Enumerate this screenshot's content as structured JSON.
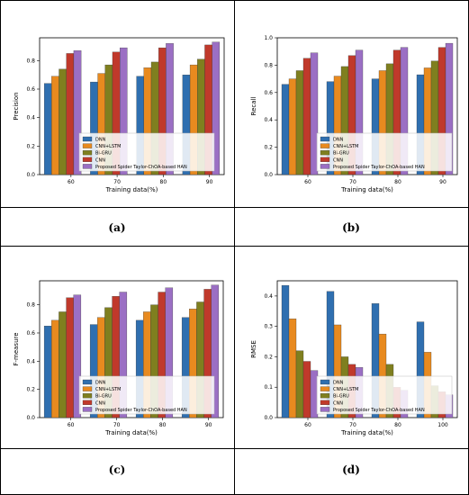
{
  "colors": {
    "DNN": "#2f6fb0",
    "CNN+LSTM": "#e88a1f",
    "Bi-GRU": "#7f7f1f",
    "CNN": "#c0392b",
    "HAN": "#9b6fc4"
  },
  "chart_data": [
    {
      "type": "bar",
      "panel_label": "(a)",
      "xlabel": "Training data(%)",
      "ylabel": "Precision",
      "categories": [
        "60",
        "70",
        "80",
        "90"
      ],
      "ylim": [
        0,
        0.96
      ],
      "yticks": [
        "0.0",
        "0.2",
        "0.4",
        "0.6",
        "0.8"
      ],
      "legend_position": "lower-center",
      "series": [
        {
          "name": "DNN",
          "values": [
            0.64,
            0.65,
            0.69,
            0.7
          ]
        },
        {
          "name": "CNN+LSTM",
          "values": [
            0.69,
            0.71,
            0.75,
            0.77
          ]
        },
        {
          "name": "Bi-GRU",
          "values": [
            0.74,
            0.77,
            0.79,
            0.81
          ]
        },
        {
          "name": "CNN",
          "values": [
            0.85,
            0.86,
            0.89,
            0.91
          ]
        },
        {
          "name": "Proposed Spider Taylor-ChOA-based HAN",
          "values": [
            0.87,
            0.89,
            0.92,
            0.93
          ]
        }
      ]
    },
    {
      "type": "bar",
      "panel_label": "(b)",
      "xlabel": "Training data(%)",
      "ylabel": "Recall",
      "categories": [
        "60",
        "70",
        "80",
        "90"
      ],
      "ylim": [
        0,
        1.0
      ],
      "yticks": [
        "0.0",
        "0.2",
        "0.4",
        "0.6",
        "0.8",
        "1.0"
      ],
      "legend_position": "lower-center",
      "series": [
        {
          "name": "DNN",
          "values": [
            0.66,
            0.68,
            0.7,
            0.73
          ]
        },
        {
          "name": "CNN+LSTM",
          "values": [
            0.7,
            0.72,
            0.76,
            0.78
          ]
        },
        {
          "name": "Bi-GRU",
          "values": [
            0.76,
            0.79,
            0.81,
            0.83
          ]
        },
        {
          "name": "CNN",
          "values": [
            0.85,
            0.87,
            0.91,
            0.93
          ]
        },
        {
          "name": "Proposed Spider Taylor-ChOA-based HAN",
          "values": [
            0.89,
            0.91,
            0.93,
            0.96
          ]
        }
      ]
    },
    {
      "type": "bar",
      "panel_label": "(c)",
      "xlabel": "Training data(%)",
      "ylabel": "F-measure",
      "categories": [
        "60",
        "70",
        "80",
        "90"
      ],
      "ylim": [
        0,
        0.97
      ],
      "yticks": [
        "0.0",
        "0.2",
        "0.4",
        "0.6",
        "0.8"
      ],
      "legend_position": "lower-center",
      "series": [
        {
          "name": "DNN",
          "values": [
            0.65,
            0.66,
            0.69,
            0.71
          ]
        },
        {
          "name": "CNN+LSTM",
          "values": [
            0.69,
            0.71,
            0.75,
            0.77
          ]
        },
        {
          "name": "Bi-GRU",
          "values": [
            0.75,
            0.78,
            0.8,
            0.82
          ]
        },
        {
          "name": "CNN",
          "values": [
            0.85,
            0.86,
            0.89,
            0.91
          ]
        },
        {
          "name": "Proposed Spider Taylor-ChOA-based HAN",
          "values": [
            0.87,
            0.89,
            0.92,
            0.94
          ]
        }
      ]
    },
    {
      "type": "bar",
      "panel_label": "(d)",
      "xlabel": "Training data(%)",
      "ylabel": "RMSE",
      "categories": [
        "60",
        "70",
        "80",
        "100"
      ],
      "ylim": [
        0,
        0.45
      ],
      "yticks": [
        "0.0",
        "0.1",
        "0.2",
        "0.3",
        "0.4"
      ],
      "legend_position": "lower-center",
      "series": [
        {
          "name": "DNN",
          "values": [
            0.435,
            0.415,
            0.375,
            0.315
          ]
        },
        {
          "name": "CNN+LSTM",
          "values": [
            0.325,
            0.305,
            0.275,
            0.215
          ]
        },
        {
          "name": "Bi-GRU",
          "values": [
            0.22,
            0.2,
            0.175,
            0.105
          ]
        },
        {
          "name": "CNN",
          "values": [
            0.185,
            0.175,
            0.1,
            0.085
          ]
        },
        {
          "name": "Proposed Spider Taylor-ChOA-based HAN",
          "values": [
            0.155,
            0.165,
            0.09,
            0.075
          ]
        }
      ]
    }
  ]
}
